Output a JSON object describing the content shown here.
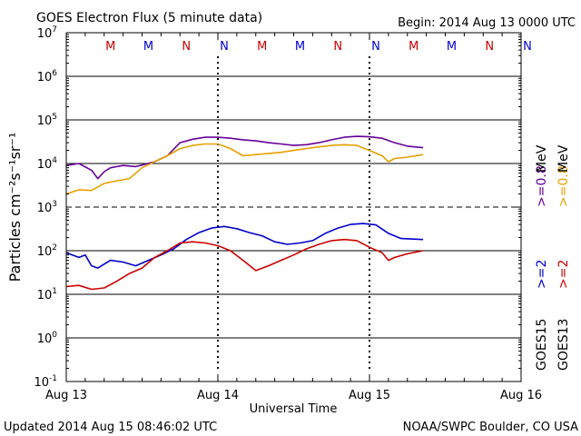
{
  "chart_data": {
    "type": "line",
    "title": "GOES Electron Flux (5 minute data)",
    "begin_label": "Begin: 2014 Aug 13 0000 UTC",
    "xlabel": "Universal Time",
    "ylabel": "Particles cm⁻²s⁻¹sr⁻¹",
    "yscale": "log",
    "ylim": [
      0.1,
      10000000
    ],
    "xlim": [
      "2014-08-13T00:00",
      "2014-08-16T00:00"
    ],
    "x_ticks": [
      "Aug 13",
      "Aug 14",
      "Aug 15",
      "Aug 16"
    ],
    "y_ticks": [
      {
        "base": "10",
        "exp": "-1",
        "value": 0.1
      },
      {
        "base": "10",
        "exp": "0",
        "value": 1
      },
      {
        "base": "10",
        "exp": "1",
        "value": 10
      },
      {
        "base": "10",
        "exp": "2",
        "value": 100
      },
      {
        "base": "10",
        "exp": "3",
        "value": 1000
      },
      {
        "base": "10",
        "exp": "4",
        "value": 10000
      },
      {
        "base": "10",
        "exp": "5",
        "value": 100000
      },
      {
        "base": "10",
        "exp": "6",
        "value": 1000000
      },
      {
        "base": "10",
        "exp": "7",
        "value": 10000000
      }
    ],
    "threshold_line_value": 1000,
    "grid": true,
    "local_time_markers": [
      {
        "label": "M",
        "time": "2014-08-13T07:00",
        "color": "#cc0000"
      },
      {
        "label": "M",
        "time": "2014-08-13T13:00",
        "color": "#0000cc"
      },
      {
        "label": "N",
        "time": "2014-08-13T19:00",
        "color": "#cc0000"
      },
      {
        "label": "N",
        "time": "2014-08-14T01:00",
        "color": "#0000cc"
      },
      {
        "label": "M",
        "time": "2014-08-14T07:00",
        "color": "#cc0000"
      },
      {
        "label": "M",
        "time": "2014-08-14T13:00",
        "color": "#0000cc"
      },
      {
        "label": "N",
        "time": "2014-08-14T19:00",
        "color": "#cc0000"
      },
      {
        "label": "N",
        "time": "2014-08-15T01:00",
        "color": "#0000cc"
      },
      {
        "label": "M",
        "time": "2014-08-15T07:00",
        "color": "#cc0000"
      },
      {
        "label": "M",
        "time": "2014-08-15T13:00",
        "color": "#0000cc"
      },
      {
        "label": "N",
        "time": "2014-08-15T19:00",
        "color": "#cc0000"
      },
      {
        "label": "N",
        "time": "2014-08-16T01:00",
        "color": "#0000cc"
      }
    ],
    "day_boundary_markers": [
      "2014-08-14T00:00",
      "2014-08-15T00:00"
    ],
    "legend": [
      {
        "satellite": "GOES15",
        "energy": ">=2",
        "unit": "MeV",
        "color": "#0000cc"
      },
      {
        "satellite": "GOES13",
        "energy": ">=2",
        "unit": "MeV",
        "color": "#cc0000"
      },
      {
        "satellite": "GOES15",
        "energy": ">=0.8",
        "unit": "MeV",
        "color": "#660099"
      },
      {
        "satellite": "GOES13",
        "energy": ">=0.8",
        "unit": "MeV",
        "color": "#e8a000"
      }
    ],
    "legend_satellites": [
      "GOES15",
      "GOES13"
    ],
    "legend_unit": "MeV",
    "series": [
      {
        "name": "GOES15 >=0.8 MeV",
        "color": "#660099",
        "x": [
          "2014-08-13T00:00",
          "2014-08-13T02:00",
          "2014-08-13T04:00",
          "2014-08-13T05:00",
          "2014-08-13T06:00",
          "2014-08-13T07:00",
          "2014-08-13T09:00",
          "2014-08-13T11:00",
          "2014-08-13T12:00",
          "2014-08-13T14:00",
          "2014-08-13T16:00",
          "2014-08-13T18:00",
          "2014-08-13T20:00",
          "2014-08-13T22:00",
          "2014-08-14T00:00",
          "2014-08-14T02:00",
          "2014-08-14T04:00",
          "2014-08-14T06:00",
          "2014-08-14T08:00",
          "2014-08-14T10:00",
          "2014-08-14T12:00",
          "2014-08-14T14:00",
          "2014-08-14T16:00",
          "2014-08-14T18:00",
          "2014-08-14T20:00",
          "2014-08-14T22:00",
          "2014-08-15T00:00",
          "2014-08-15T02:00",
          "2014-08-15T04:00",
          "2014-08-15T06:00",
          "2014-08-15T08:30"
        ],
        "values": [
          9000,
          10000,
          7000,
          4500,
          6500,
          8000,
          9000,
          8500,
          9200,
          11000,
          15000,
          30000,
          36000,
          40000,
          40000,
          38000,
          35000,
          33000,
          30000,
          28000,
          26000,
          27000,
          30000,
          35000,
          40000,
          42000,
          41000,
          38000,
          30000,
          25000,
          23000
        ]
      },
      {
        "name": "GOES13 >=0.8 MeV",
        "color": "#e8a000",
        "x": [
          "2014-08-13T00:00",
          "2014-08-13T02:00",
          "2014-08-13T04:00",
          "2014-08-13T06:00",
          "2014-08-13T08:00",
          "2014-08-13T10:00",
          "2014-08-13T12:00",
          "2014-08-13T14:00",
          "2014-08-13T16:00",
          "2014-08-13T18:00",
          "2014-08-13T20:00",
          "2014-08-13T22:00",
          "2014-08-14T00:00",
          "2014-08-14T02:00",
          "2014-08-14T04:00",
          "2014-08-14T06:00",
          "2014-08-14T08:00",
          "2014-08-14T10:00",
          "2014-08-14T12:00",
          "2014-08-14T14:00",
          "2014-08-14T16:00",
          "2014-08-14T18:00",
          "2014-08-14T20:00",
          "2014-08-14T22:00",
          "2014-08-15T00:00",
          "2014-08-15T02:00",
          "2014-08-15T03:00",
          "2014-08-15T04:00",
          "2014-08-15T06:00",
          "2014-08-15T08:30"
        ],
        "values": [
          2000,
          2500,
          2400,
          3500,
          4000,
          4500,
          8000,
          11000,
          15000,
          22000,
          26000,
          28000,
          28000,
          22000,
          15000,
          16000,
          17000,
          18000,
          20000,
          22000,
          24000,
          26000,
          27000,
          26000,
          20000,
          15000,
          11000,
          13000,
          14000,
          16000
        ]
      },
      {
        "name": "GOES15 >=2 MeV",
        "color": "#0000cc",
        "x": [
          "2014-08-13T00:00",
          "2014-08-13T02:00",
          "2014-08-13T03:00",
          "2014-08-13T04:00",
          "2014-08-13T05:00",
          "2014-08-13T07:00",
          "2014-08-13T09:00",
          "2014-08-13T11:00",
          "2014-08-13T13:00",
          "2014-08-13T15:00",
          "2014-08-13T17:00",
          "2014-08-13T19:00",
          "2014-08-13T21:00",
          "2014-08-13T23:00",
          "2014-08-14T01:00",
          "2014-08-14T03:00",
          "2014-08-14T05:00",
          "2014-08-14T07:00",
          "2014-08-14T09:00",
          "2014-08-14T11:00",
          "2014-08-14T13:00",
          "2014-08-14T15:00",
          "2014-08-14T17:00",
          "2014-08-14T19:00",
          "2014-08-14T21:00",
          "2014-08-14T23:00",
          "2014-08-15T01:00",
          "2014-08-15T03:00",
          "2014-08-15T05:00",
          "2014-08-15T08:30"
        ],
        "values": [
          90,
          70,
          80,
          45,
          40,
          60,
          55,
          45,
          60,
          80,
          110,
          180,
          260,
          330,
          360,
          320,
          260,
          220,
          160,
          140,
          150,
          170,
          250,
          330,
          400,
          420,
          390,
          250,
          190,
          180
        ]
      },
      {
        "name": "GOES13 >=2 MeV",
        "color": "#cc0000",
        "x": [
          "2014-08-13T00:00",
          "2014-08-13T02:00",
          "2014-08-13T04:00",
          "2014-08-13T06:00",
          "2014-08-13T08:00",
          "2014-08-13T10:00",
          "2014-08-13T12:00",
          "2014-08-13T14:00",
          "2014-08-13T16:00",
          "2014-08-13T18:00",
          "2014-08-13T20:00",
          "2014-08-13T22:00",
          "2014-08-14T00:00",
          "2014-08-14T02:00",
          "2014-08-14T04:00",
          "2014-08-14T06:00",
          "2014-08-14T08:00",
          "2014-08-14T10:00",
          "2014-08-14T12:00",
          "2014-08-14T14:00",
          "2014-08-14T16:00",
          "2014-08-14T18:00",
          "2014-08-14T20:00",
          "2014-08-14T22:00",
          "2014-08-15T00:00",
          "2014-08-15T02:00",
          "2014-08-15T03:00",
          "2014-08-15T04:00",
          "2014-08-15T06:00",
          "2014-08-15T08:30"
        ],
        "values": [
          15,
          16,
          13,
          14,
          20,
          30,
          40,
          70,
          100,
          150,
          160,
          150,
          130,
          100,
          60,
          35,
          45,
          60,
          80,
          110,
          140,
          170,
          180,
          170,
          120,
          90,
          60,
          70,
          85,
          100
        ]
      }
    ],
    "footer_left": "Updated 2014 Aug 15 08:46:02 UTC",
    "footer_right": "NOAA/SWPC Boulder, CO USA"
  }
}
